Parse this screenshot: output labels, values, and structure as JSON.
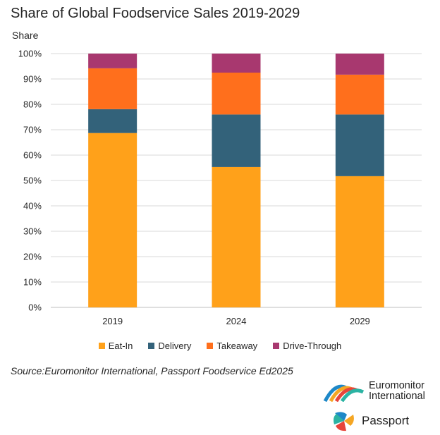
{
  "chart_data": {
    "type": "bar",
    "stacked": true,
    "title": "Share of Global Foodservice Sales 2019-2029",
    "ylabel": "Share",
    "xlabel": "",
    "categories": [
      "2019",
      "2024",
      "2029"
    ],
    "ylim": [
      0,
      100
    ],
    "yticks": [
      "0%",
      "10%",
      "20%",
      "30%",
      "40%",
      "50%",
      "60%",
      "70%",
      "80%",
      "90%",
      "100%"
    ],
    "grid": true,
    "legend_position": "bottom",
    "series": [
      {
        "name": "Eat-In",
        "color": "#FFA11A",
        "values": [
          68.7,
          55.3,
          51.7
        ]
      },
      {
        "name": "Delivery",
        "color": "#33627A",
        "values": [
          9.4,
          20.7,
          24.3
        ]
      },
      {
        "name": "Takeaway",
        "color": "#FF6F1C",
        "values": [
          16.1,
          16.5,
          15.7
        ]
      },
      {
        "name": "Drive-Through",
        "color": "#A8386F",
        "values": [
          5.8,
          7.5,
          8.3
        ]
      }
    ]
  },
  "source": "Source:Euromonitor International, Passport Foodservice Ed2025",
  "brands": {
    "euromonitor_line1": "Euromonitor",
    "euromonitor_line2": "International",
    "passport": "Passport"
  }
}
